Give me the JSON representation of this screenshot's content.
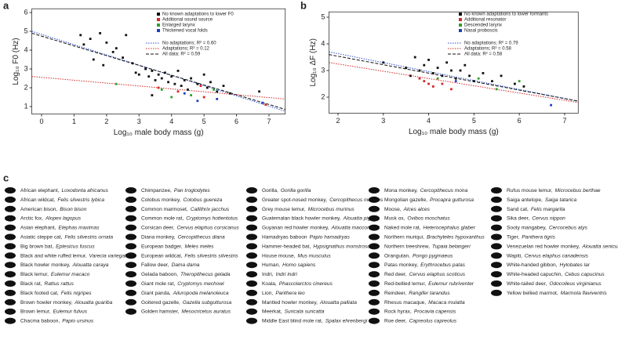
{
  "chart_data": [
    {
      "type": "scatter",
      "panel_label": "a",
      "xlabel": "Log₁₀ male body mass (g)",
      "ylabel": "Log₁₀ F0 (Hz)",
      "xlim": [
        -0.3,
        7.5
      ],
      "ylim": [
        0.6,
        6.2
      ],
      "xticks": [
        0,
        1,
        2,
        3,
        4,
        5,
        6,
        7
      ],
      "yticks": [
        1,
        2,
        3,
        4,
        5,
        6
      ],
      "legend": "upper right",
      "series": [
        {
          "name": "No known adaptations to lower F0",
          "color": "#111111",
          "x": [
            1.2,
            1.3,
            1.5,
            1.6,
            1.8,
            2.0,
            2.2,
            2.3,
            2.5,
            2.6,
            2.8,
            3.0,
            3.2,
            3.3,
            3.4,
            3.5,
            3.6,
            3.7,
            3.8,
            3.9,
            4.0,
            4.1,
            4.2,
            4.3,
            4.4,
            4.5,
            4.6,
            4.8,
            5.0,
            5.1,
            5.2,
            5.4,
            5.6,
            5.8,
            3.4,
            6.7,
            1.9,
            2.9
          ],
          "values": [
            4.8,
            4.3,
            4.6,
            3.5,
            4.9,
            4.4,
            3.9,
            4.1,
            3.6,
            4.8,
            3.3,
            2.7,
            3.0,
            2.6,
            2.9,
            2.4,
            2.7,
            2.5,
            2.8,
            2.3,
            2.6,
            2.2,
            2.9,
            2.1,
            2.4,
            1.9,
            2.5,
            2.2,
            2.7,
            2.0,
            2.3,
            1.8,
            2.1,
            1.7,
            1.6,
            1.8,
            3.2,
            2.8
          ]
        },
        {
          "name": "Additional sound source",
          "color": "#d62828",
          "x": [
            3.6,
            4.2,
            5.0,
            4.9,
            6.9
          ],
          "values": [
            2.0,
            1.8,
            1.5,
            2.1,
            1.1
          ]
        },
        {
          "name": "Enlarged larynx",
          "color": "#2ca02c",
          "x": [
            2.3,
            3.7,
            4.6,
            5.3,
            4.0
          ],
          "values": [
            2.2,
            1.9,
            1.6,
            1.9,
            1.5
          ]
        },
        {
          "name": "Thickened vocal folds",
          "color": "#1f3fbf",
          "x": [
            4.8,
            5.4,
            6.8,
            4.4
          ],
          "values": [
            1.3,
            1.4,
            1.2,
            1.7
          ]
        }
      ],
      "lines": [
        {
          "name": "No adaptations; R² = 0.60",
          "color": "#2f4fd0",
          "style": "dotted",
          "x": [
            -0.3,
            7.5
          ],
          "values": [
            5.0,
            0.75
          ]
        },
        {
          "name": "Adaptations; R² = 0.12",
          "color": "#d62828",
          "style": "dotted",
          "x": [
            -0.3,
            7.5
          ],
          "values": [
            2.6,
            1.4
          ]
        },
        {
          "name": "All data: R² = 0.59",
          "color": "#111111",
          "style": "dashed",
          "x": [
            -0.3,
            7.5
          ],
          "values": [
            4.9,
            0.85
          ]
        }
      ]
    },
    {
      "type": "scatter",
      "panel_label": "b",
      "xlabel": "Log₁₀ male body mass (g)",
      "ylabel": "Log₁₀ ΔF (Hz)",
      "xlim": [
        1.8,
        7.3
      ],
      "ylim": [
        1.4,
        5.2
      ],
      "xticks": [
        2,
        3,
        4,
        5,
        6,
        7
      ],
      "yticks": [
        2,
        3,
        4,
        5
      ],
      "legend": "upper right",
      "series": [
        {
          "name": "No known adaptations to lower formants",
          "color": "#111111",
          "x": [
            3.0,
            3.5,
            3.7,
            3.8,
            3.9,
            4.0,
            4.1,
            4.2,
            4.3,
            4.4,
            4.5,
            4.6,
            4.7,
            4.9,
            5.0,
            5.2,
            5.4,
            5.6,
            5.9,
            6.1,
            4.8,
            3.6
          ],
          "values": [
            3.3,
            3.1,
            3.5,
            3.0,
            3.2,
            3.4,
            2.9,
            3.1,
            2.8,
            3.3,
            3.0,
            2.7,
            3.0,
            2.8,
            2.6,
            2.9,
            2.6,
            2.8,
            2.5,
            2.4,
            3.2,
            2.8
          ]
        },
        {
          "name": "Additional resonator",
          "color": "#d62828",
          "x": [
            3.8,
            3.9,
            4.0,
            4.1,
            4.3,
            4.5
          ],
          "values": [
            2.7,
            2.6,
            2.5,
            2.4,
            2.5,
            2.3
          ]
        },
        {
          "name": "Descended larynx",
          "color": "#2ca02c",
          "x": [
            4.2,
            5.1,
            5.5,
            6.0
          ],
          "values": [
            2.7,
            2.7,
            2.3,
            2.6
          ]
        },
        {
          "name": "Nasal proboscis",
          "color": "#1f3fbf",
          "x": [
            4.6,
            6.7
          ],
          "values": [
            2.6,
            1.7
          ]
        }
      ],
      "lines": [
        {
          "name": "No adaptations; R² = 0.79",
          "color": "#2f4fd0",
          "style": "dotted",
          "x": [
            1.8,
            7.3
          ],
          "values": [
            3.7,
            1.85
          ]
        },
        {
          "name": "Adaptations; R² = 0.58",
          "color": "#d62828",
          "style": "dotted",
          "x": [
            1.8,
            7.3
          ],
          "values": [
            3.3,
            1.8
          ]
        },
        {
          "name": "All data: R² = 0.58",
          "color": "#111111",
          "style": "dashed",
          "x": [
            1.8,
            7.3
          ],
          "values": [
            3.6,
            1.85
          ]
        }
      ]
    }
  ],
  "panel_c": {
    "label": "c",
    "columns": [
      [
        {
          "common": "African elephant,",
          "latin": "Loxodonta africanus"
        },
        {
          "common": "African wildcat,",
          "latin": "Felis silvestris lybica"
        },
        {
          "common": "American bison,",
          "latin": "Bison bison"
        },
        {
          "common": "Arctic fox,",
          "latin": "Alopex lagopus"
        },
        {
          "common": "Asian elephant,",
          "latin": "Elephas maximas"
        },
        {
          "common": "Asiatic steppe cat,",
          "latin": "Felis silvestris ornata"
        },
        {
          "common": "Big brown bat,",
          "latin": "Eptesicus fuscus"
        },
        {
          "common": "Black and white ruffed lemur,",
          "latin": "Varecia variegata"
        },
        {
          "common": "Black howler monkey,",
          "latin": "Alouatta caraya"
        },
        {
          "common": "Black lemur,",
          "latin": "Eulemur macaco"
        },
        {
          "common": "Black rat,",
          "latin": "Rattus rattus"
        },
        {
          "common": "Black footed cat,",
          "latin": "Felis nigripes"
        },
        {
          "common": "Brown howler monkey,",
          "latin": "Alouatta guariba"
        },
        {
          "common": "Brown lemur,",
          "latin": "Eulemur fulvus"
        },
        {
          "common": "Chacma baboon,",
          "latin": "Papio ursinus"
        }
      ],
      [
        {
          "common": "Chimpanzee,",
          "latin": "Pan troglodytes"
        },
        {
          "common": "Colobus monkey,",
          "latin": "Colobus guereza"
        },
        {
          "common": "Common marmoset,",
          "latin": "Callithrix jacchus"
        },
        {
          "common": "Common mole rat,",
          "latin": "Cryptomys hottentotus"
        },
        {
          "common": "Corsican deer,",
          "latin": "Cervus elaphus corsicanus"
        },
        {
          "common": "Diana monkey,",
          "latin": "Cercopithecus diana"
        },
        {
          "common": "European badger,",
          "latin": "Meles meles"
        },
        {
          "common": "European wildcat,",
          "latin": "Felis silvestris silvestris"
        },
        {
          "common": "Fallow deer,",
          "latin": "Dama dama"
        },
        {
          "common": "Gelada baboon,",
          "latin": "Theropithecus gelada"
        },
        {
          "common": "Giant mole rat,",
          "latin": "Cryptomys mechowi"
        },
        {
          "common": "Giant panda,",
          "latin": "Ailuropoda melanoleuca"
        },
        {
          "common": "Goitered gazelle,",
          "latin": "Gazella subgutturosa"
        },
        {
          "common": "Golden hamster,",
          "latin": "Mesocricetus auratus"
        }
      ],
      [
        {
          "common": "Gorilla,",
          "latin": "Gorilla gorilla"
        },
        {
          "common": "Greater spot-nosed monkey,",
          "latin": "Cercopithecus nictitans"
        },
        {
          "common": "Grey mouse lemur,",
          "latin": "Microcebus murinus"
        },
        {
          "common": "Guatemalan black howler monkey,",
          "latin": "Alouatta pigra"
        },
        {
          "common": "Guyanan red howler monkey,",
          "latin": "Alouatta macconnelli"
        },
        {
          "common": "Hamadryas baboon",
          "latin": "Papio hamadryas"
        },
        {
          "common": "Hammer-headed bat,",
          "latin": "Hypsignathus monstrosus"
        },
        {
          "common": "House mouse,",
          "latin": "Mus musculus"
        },
        {
          "common": "Human,",
          "latin": "Homo sapiens"
        },
        {
          "common": "Indri,",
          "latin": "Indri indri"
        },
        {
          "common": "Koala,",
          "latin": "Phascolarctos cinereus"
        },
        {
          "common": "Lion,",
          "latin": "Panthera leo"
        },
        {
          "common": "Mantled howler monkey,",
          "latin": "Alouatta palliata"
        },
        {
          "common": "Meerkat,",
          "latin": "Suricata suricatta"
        },
        {
          "common": "Middle East blind mole rat,",
          "latin": "Spalax ehrenbergi"
        }
      ],
      [
        {
          "common": "Mona monkey,",
          "latin": "Cercopithecus mona"
        },
        {
          "common": "Mongolian gazelle,",
          "latin": "Procapra gutturosa"
        },
        {
          "common": "Moose,",
          "latin": "Alces alces"
        },
        {
          "common": "Musk ox,",
          "latin": "Ovibos moschatus"
        },
        {
          "common": "Naked mole rat,",
          "latin": "Heterocephalus glaber"
        },
        {
          "common": "Northern muriqui,",
          "latin": "Brachyteles hypoxanthus"
        },
        {
          "common": "Northern treeshrew,",
          "latin": "Tupaia belangeri"
        },
        {
          "common": "Orangutan,",
          "latin": "Pongo pygmaeus"
        },
        {
          "common": "Patas monkey,",
          "latin": "Erythrocebus patas"
        },
        {
          "common": "Red deer,",
          "latin": "Cervus elaphus scoticus"
        },
        {
          "common": "Red-bellied lemur,",
          "latin": "Eulemur rubriventer"
        },
        {
          "common": "Reindeer,",
          "latin": "Rangifer tarandus"
        },
        {
          "common": "Rhesus macaque,",
          "latin": "Macaca mulatta"
        },
        {
          "common": "Rock hyrax,",
          "latin": "Procavia capensis"
        },
        {
          "common": "Roe deer,",
          "latin": "Capreolus capreolus"
        }
      ],
      [
        {
          "common": "Rufus mouse lemur,",
          "latin": "Microcebus berthae"
        },
        {
          "common": "Saiga antelope,",
          "latin": "Saiga tatarica"
        },
        {
          "common": "Sand cat,",
          "latin": "Felis margarita"
        },
        {
          "common": "Sika deer,",
          "latin": "Cervus nippon"
        },
        {
          "common": "Sooty mangabey,",
          "latin": "Cercocebus atys"
        },
        {
          "common": "Tiger,",
          "latin": "Panthera tigris"
        },
        {
          "common": "Venezuelan red howler monkey,",
          "latin": "Alouatta seniculus"
        },
        {
          "common": "Wapiti,",
          "latin": "Cervus elaphus canadensis"
        },
        {
          "common": "White-handed gibbon,",
          "latin": "Hylobates lar"
        },
        {
          "common": "White-headed capuchin,",
          "latin": "Cebus capucinus"
        },
        {
          "common": "White-tailed deer,",
          "latin": "Odocoileus virginianus"
        },
        {
          "common": "Yellow bellied marmot,",
          "latin": "Marmota flaviventris"
        }
      ]
    ]
  }
}
